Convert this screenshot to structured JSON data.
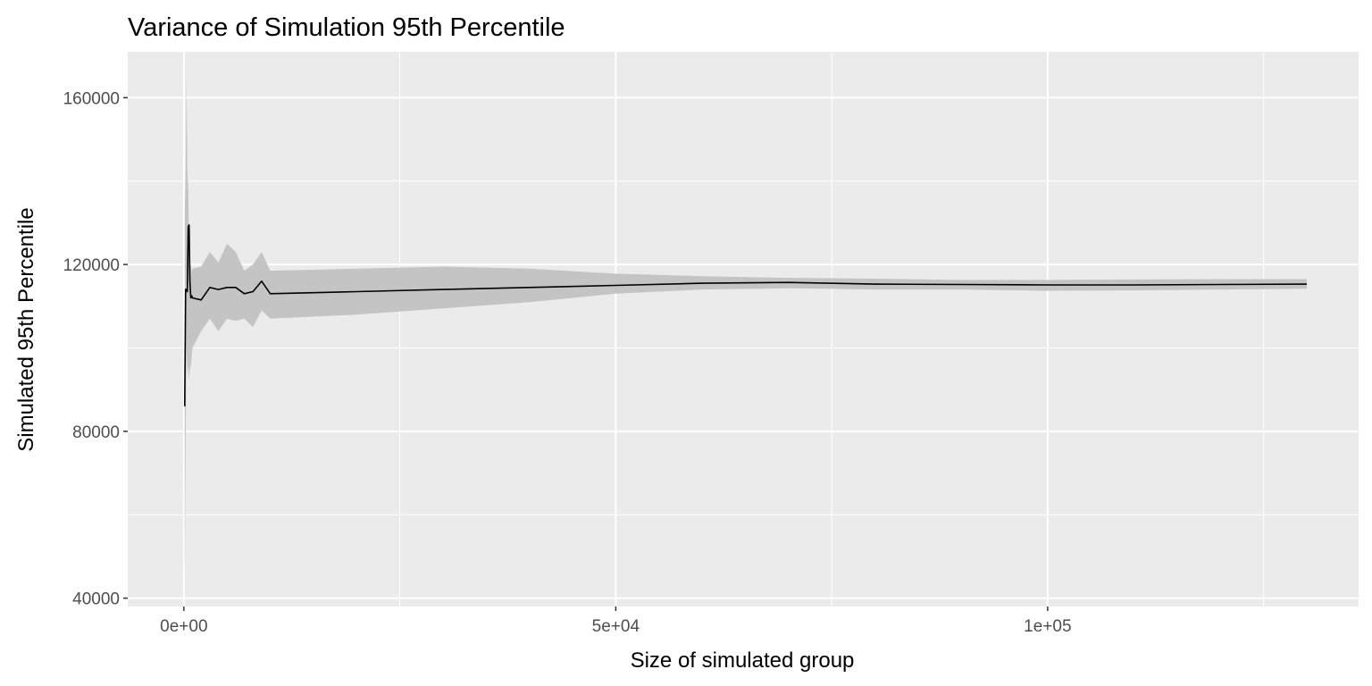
{
  "chart_data": {
    "type": "area",
    "title": "Variance of Simulation 95th Percentile",
    "xlabel": "Size of simulated group",
    "ylabel": "Simulated 95th Percentile",
    "xlim": [
      -6500,
      136000
    ],
    "ylim": [
      38000,
      171000
    ],
    "x_ticks": [
      {
        "value": 0,
        "label": "0e+00"
      },
      {
        "value": 50000,
        "label": "5e+04"
      },
      {
        "value": 100000,
        "label": "1e+05"
      }
    ],
    "x_minor_ticks": [
      25000,
      75000,
      125000
    ],
    "y_ticks": [
      {
        "value": 40000,
        "label": "40000"
      },
      {
        "value": 80000,
        "label": "80000"
      },
      {
        "value": 120000,
        "label": "120000"
      },
      {
        "value": 160000,
        "label": "160000"
      }
    ],
    "y_minor_ticks": [
      60000,
      100000,
      140000
    ],
    "grid": true,
    "background_color": "#ebebeb",
    "band_color": "#c4c4c4",
    "line_color": "#000000",
    "series": [
      {
        "x": [
          100,
          200,
          300,
          400,
          500,
          600,
          700,
          800,
          900,
          1000,
          2000,
          3000,
          4000,
          5000,
          6000,
          7000,
          8000,
          9000,
          10000,
          20000,
          30000,
          40000,
          50000,
          60000,
          70000,
          80000,
          90000,
          100000,
          110000,
          120000,
          130000
        ],
        "y": [
          86000,
          114000,
          114000,
          113500,
          129000,
          129500,
          116000,
          112000,
          112500,
          112000,
          111500,
          114500,
          114000,
          114500,
          114500,
          113000,
          113500,
          116000,
          113000,
          113500,
          114000,
          114500,
          115000,
          115500,
          115700,
          115300,
          115200,
          115100,
          115100,
          115200,
          115300
        ],
        "lower": [
          44000,
          78000,
          100000,
          93000,
          96000,
          92000,
          95000,
          95500,
          98000,
          100000,
          104000,
          107000,
          104000,
          107000,
          106500,
          107000,
          105000,
          109000,
          107000,
          108000,
          109500,
          111000,
          113000,
          114000,
          114300,
          114000,
          114000,
          113700,
          113800,
          114000,
          114200
        ],
        "upper": [
          132000,
          142000,
          165000,
          143000,
          138000,
          122000,
          119000,
          120000,
          118000,
          119000,
          119500,
          123000,
          120500,
          125000,
          123000,
          118500,
          120000,
          123000,
          118500,
          119000,
          119500,
          119000,
          117800,
          117200,
          116800,
          116600,
          116300,
          116300,
          116400,
          116500,
          116500
        ]
      }
    ]
  }
}
